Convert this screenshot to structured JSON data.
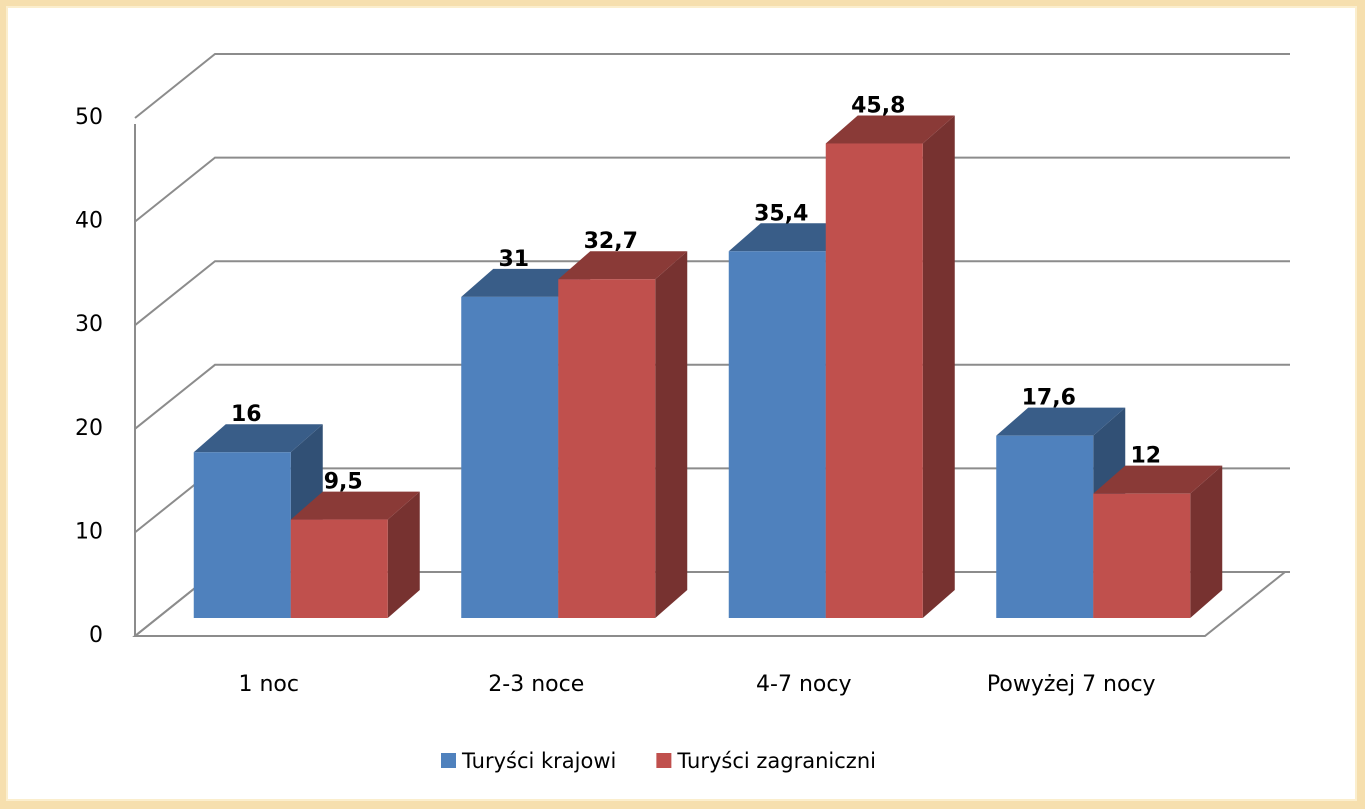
{
  "chart_data": {
    "type": "bar3d",
    "categories": [
      "1 noc",
      "2-3 noce",
      "4-7 nocy",
      "Powyżej 7 nocy"
    ],
    "series": [
      {
        "name": "Turyści krajowi",
        "color": "#4f81bd",
        "values": [
          16,
          31,
          35.4,
          17.6
        ],
        "value_labels": [
          "16",
          "31",
          "35,4",
          "17,6"
        ]
      },
      {
        "name": "Turyści zagraniczni",
        "color": "#c0504d",
        "values": [
          9.5,
          32.7,
          45.8,
          12
        ],
        "value_labels": [
          "9,5",
          "32,7",
          "45,8",
          "12"
        ]
      }
    ],
    "ylim": [
      0,
      50
    ],
    "yticks": [
      0,
      10,
      20,
      30,
      40,
      50
    ],
    "grid": true,
    "legend": "bottom"
  }
}
